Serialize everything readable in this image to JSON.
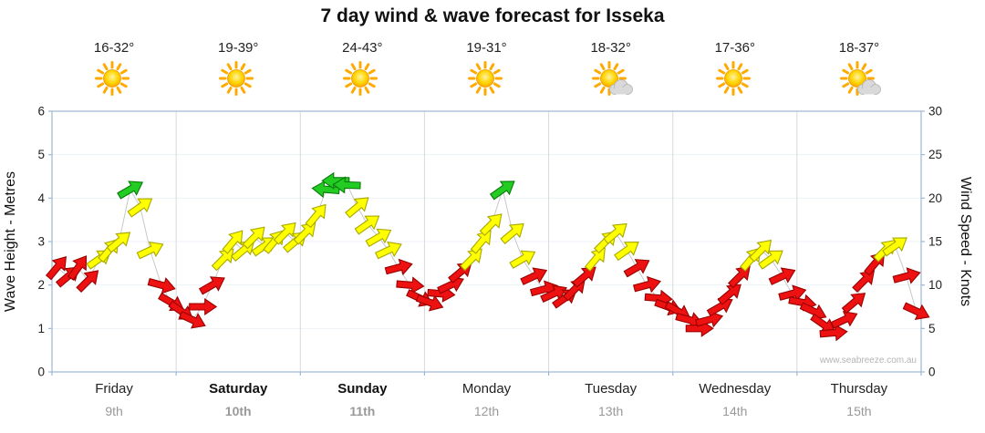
{
  "title": "7 day wind & wave forecast for Isseka",
  "watermark": "www.seabreeze.com.au",
  "chart_data": {
    "type": "scatter",
    "title": "7 day wind & wave forecast for Isseka",
    "left_axis": {
      "label": "Wave Height - Metres",
      "min": 0,
      "max": 6,
      "ticks": [
        0,
        1,
        2,
        3,
        4,
        5,
        6
      ]
    },
    "right_axis": {
      "label": "Wind Speed - Knots",
      "min": 0,
      "max": 30,
      "ticks": [
        0,
        5,
        10,
        15,
        20,
        25,
        30
      ]
    },
    "legend": "arrow color encodes wind speed",
    "speed_colors": {
      "red_max_knots": 13,
      "yellow_max_knots": 20.5,
      "red": "#ee1111",
      "red_stroke": "#990000",
      "yellow": "#ffff00",
      "yellow_stroke": "#a8a800",
      "green": "#22cc22",
      "green_stroke": "#0a7a0a"
    },
    "days": [
      {
        "name": "Friday",
        "date": "9th",
        "temp": "16-32°",
        "icon": "sunny",
        "weekend": false
      },
      {
        "name": "Saturday",
        "date": "10th",
        "temp": "19-39°",
        "icon": "sunny",
        "weekend": true
      },
      {
        "name": "Sunday",
        "date": "11th",
        "temp": "24-43°",
        "icon": "sunny",
        "weekend": true
      },
      {
        "name": "Monday",
        "date": "12th",
        "temp": "19-31°",
        "icon": "sunny",
        "weekend": false
      },
      {
        "name": "Tuesday",
        "date": "13th",
        "temp": "18-32°",
        "icon": "partly-cloudy",
        "weekend": false
      },
      {
        "name": "Wednesday",
        "date": "14th",
        "temp": "17-36°",
        "icon": "sunny",
        "weekend": false
      },
      {
        "name": "Thursday",
        "date": "15th",
        "temp": "18-37°",
        "icon": "partly-cloudy",
        "weekend": false
      }
    ],
    "arrows_format": [
      "day_index",
      "day_fraction",
      "knots",
      "direction_deg"
    ],
    "arrows": [
      [
        0,
        0.04,
        12,
        -50
      ],
      [
        0,
        0.13,
        11,
        -40
      ],
      [
        0,
        0.21,
        12,
        -55
      ],
      [
        0,
        0.29,
        10.5,
        -45
      ],
      [
        0,
        0.38,
        13,
        -35
      ],
      [
        0,
        0.46,
        14,
        -50
      ],
      [
        0,
        0.54,
        15,
        -40
      ],
      [
        0,
        0.63,
        21,
        -30
      ],
      [
        0,
        0.71,
        19,
        -35
      ],
      [
        0,
        0.79,
        14,
        -25
      ],
      [
        0,
        0.88,
        10,
        15
      ],
      [
        0,
        0.96,
        8,
        30
      ],
      [
        1,
        0.04,
        7,
        35
      ],
      [
        1,
        0.13,
        6,
        25
      ],
      [
        1,
        0.21,
        7.5,
        0
      ],
      [
        1,
        0.29,
        10,
        -30
      ],
      [
        1,
        0.38,
        13,
        -45
      ],
      [
        1,
        0.46,
        15,
        -50
      ],
      [
        1,
        0.54,
        14,
        -40
      ],
      [
        1,
        0.63,
        15.5,
        -45
      ],
      [
        1,
        0.71,
        14.5,
        -35
      ],
      [
        1,
        0.79,
        15,
        -50
      ],
      [
        1,
        0.88,
        16,
        -45
      ],
      [
        1,
        0.96,
        15,
        -40
      ],
      [
        2,
        0.04,
        16,
        -45
      ],
      [
        2,
        0.13,
        18,
        -50
      ],
      [
        2,
        0.21,
        21,
        185
      ],
      [
        2,
        0.29,
        22,
        180
      ],
      [
        2,
        0.38,
        21.5,
        182
      ],
      [
        2,
        0.46,
        19,
        -40
      ],
      [
        2,
        0.54,
        17,
        -35
      ],
      [
        2,
        0.63,
        15.5,
        -30
      ],
      [
        2,
        0.71,
        14,
        -25
      ],
      [
        2,
        0.79,
        12,
        -15
      ],
      [
        2,
        0.88,
        10,
        5
      ],
      [
        2,
        0.96,
        8.5,
        25
      ],
      [
        3,
        0.04,
        8,
        20
      ],
      [
        3,
        0.13,
        9,
        5
      ],
      [
        3,
        0.21,
        10,
        -25
      ],
      [
        3,
        0.29,
        11.5,
        -40
      ],
      [
        3,
        0.38,
        13,
        -45
      ],
      [
        3,
        0.46,
        15,
        -50
      ],
      [
        3,
        0.54,
        17,
        -45
      ],
      [
        3,
        0.63,
        21,
        -35
      ],
      [
        3,
        0.71,
        16,
        -40
      ],
      [
        3,
        0.79,
        13,
        -30
      ],
      [
        3,
        0.88,
        11,
        -25
      ],
      [
        3,
        0.96,
        9.5,
        -15
      ],
      [
        4,
        0.04,
        9,
        -25
      ],
      [
        4,
        0.13,
        8.5,
        -35
      ],
      [
        4,
        0.21,
        9.5,
        -45
      ],
      [
        4,
        0.29,
        11,
        -40
      ],
      [
        4,
        0.38,
        13,
        -50
      ],
      [
        4,
        0.46,
        15,
        -45
      ],
      [
        4,
        0.54,
        16,
        -40
      ],
      [
        4,
        0.63,
        14,
        -35
      ],
      [
        4,
        0.71,
        12,
        -30
      ],
      [
        4,
        0.79,
        10,
        -15
      ],
      [
        4,
        0.88,
        8.5,
        5
      ],
      [
        4,
        0.96,
        7.5,
        20
      ],
      [
        5,
        0.04,
        7,
        30
      ],
      [
        5,
        0.13,
        6,
        15
      ],
      [
        5,
        0.21,
        5,
        0
      ],
      [
        5,
        0.29,
        6,
        -15
      ],
      [
        5,
        0.38,
        7.5,
        -30
      ],
      [
        5,
        0.46,
        9,
        -40
      ],
      [
        5,
        0.54,
        11,
        -45
      ],
      [
        5,
        0.63,
        13,
        -50
      ],
      [
        5,
        0.71,
        14,
        -45
      ],
      [
        5,
        0.79,
        13,
        -35
      ],
      [
        5,
        0.88,
        11,
        -25
      ],
      [
        5,
        0.96,
        9,
        -15
      ],
      [
        6,
        0.04,
        8,
        10
      ],
      [
        6,
        0.13,
        7,
        25
      ],
      [
        6,
        0.21,
        5.5,
        35
      ],
      [
        6,
        0.29,
        4.5,
        -5
      ],
      [
        6,
        0.38,
        6,
        -25
      ],
      [
        6,
        0.46,
        8,
        -40
      ],
      [
        6,
        0.54,
        10.5,
        -45
      ],
      [
        6,
        0.63,
        12.5,
        -50
      ],
      [
        6,
        0.71,
        14,
        -45
      ],
      [
        6,
        0.79,
        14.5,
        -35
      ],
      [
        6,
        0.88,
        11,
        -15
      ],
      [
        6,
        0.96,
        7,
        25
      ]
    ]
  }
}
